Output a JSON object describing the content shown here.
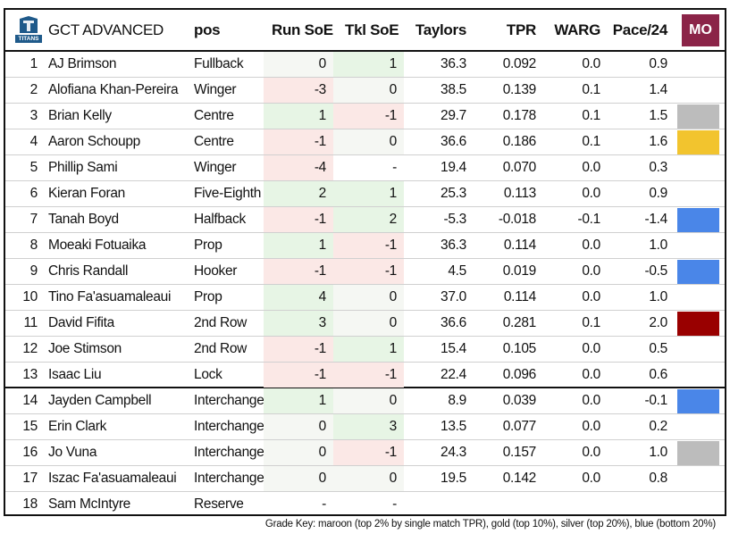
{
  "header": {
    "team": "GCT ADVANCED",
    "logo_label": "TITANS",
    "cols": {
      "pos": "pos",
      "run": "Run SoE",
      "tkl": "Tkl SoE",
      "taylors": "Taylors",
      "tpr": "TPR",
      "warg": "WARG",
      "pace": "Pace/24",
      "mo": "MO"
    }
  },
  "colors": {
    "maroon": "#8b2448",
    "gold": "#f2c42e",
    "silver": "#bcbcbc",
    "blue": "#4a86e8",
    "dark_red": "#990000",
    "positive_bg": "#e7f5e5",
    "negative_bg": "#fbe8e6"
  },
  "rows": [
    {
      "num": "1",
      "name": "AJ Brimson",
      "pos": "Fullback",
      "run": "0",
      "tkl": "1",
      "taylors": "36.3",
      "tpr": "0.092",
      "warg": "0.0",
      "pace": "0.9",
      "grade": ""
    },
    {
      "num": "2",
      "name": "Alofiana Khan-Pereira",
      "pos": "Winger",
      "run": "-3",
      "tkl": "0",
      "taylors": "38.5",
      "tpr": "0.139",
      "warg": "0.1",
      "pace": "1.4",
      "grade": ""
    },
    {
      "num": "3",
      "name": "Brian Kelly",
      "pos": "Centre",
      "run": "1",
      "tkl": "-1",
      "taylors": "29.7",
      "tpr": "0.178",
      "warg": "0.1",
      "pace": "1.5",
      "grade": "silver"
    },
    {
      "num": "4",
      "name": "Aaron Schoupp",
      "pos": "Centre",
      "run": "-1",
      "tkl": "0",
      "taylors": "36.6",
      "tpr": "0.186",
      "warg": "0.1",
      "pace": "1.6",
      "grade": "gold"
    },
    {
      "num": "5",
      "name": "Phillip Sami",
      "pos": "Winger",
      "run": "-4",
      "tkl": "-",
      "taylors": "19.4",
      "tpr": "0.070",
      "warg": "0.0",
      "pace": "0.3",
      "grade": ""
    },
    {
      "num": "6",
      "name": "Kieran Foran",
      "pos": "Five-Eighth",
      "run": "2",
      "tkl": "1",
      "taylors": "25.3",
      "tpr": "0.113",
      "warg": "0.0",
      "pace": "0.9",
      "grade": ""
    },
    {
      "num": "7",
      "name": "Tanah Boyd",
      "pos": "Halfback",
      "run": "-1",
      "tkl": "2",
      "taylors": "-5.3",
      "tpr": "-0.018",
      "warg": "-0.1",
      "pace": "-1.4",
      "grade": "blue"
    },
    {
      "num": "8",
      "name": "Moeaki Fotuaika",
      "pos": "Prop",
      "run": "1",
      "tkl": "-1",
      "taylors": "36.3",
      "tpr": "0.114",
      "warg": "0.0",
      "pace": "1.0",
      "grade": ""
    },
    {
      "num": "9",
      "name": "Chris Randall",
      "pos": "Hooker",
      "run": "-1",
      "tkl": "-1",
      "taylors": "4.5",
      "tpr": "0.019",
      "warg": "0.0",
      "pace": "-0.5",
      "grade": "blue"
    },
    {
      "num": "10",
      "name": "Tino Fa'asuamaleaui",
      "pos": "Prop",
      "run": "4",
      "tkl": "0",
      "taylors": "37.0",
      "tpr": "0.114",
      "warg": "0.0",
      "pace": "1.0",
      "grade": ""
    },
    {
      "num": "11",
      "name": "David Fifita",
      "pos": "2nd Row",
      "run": "3",
      "tkl": "0",
      "taylors": "36.6",
      "tpr": "0.281",
      "warg": "0.1",
      "pace": "2.0",
      "grade": "maroon"
    },
    {
      "num": "12",
      "name": "Joe Stimson",
      "pos": "2nd Row",
      "run": "-1",
      "tkl": "1",
      "taylors": "15.4",
      "tpr": "0.105",
      "warg": "0.0",
      "pace": "0.5",
      "grade": ""
    },
    {
      "num": "13",
      "name": "Isaac Liu",
      "pos": "Lock",
      "run": "-1",
      "tkl": "-1",
      "taylors": "22.4",
      "tpr": "0.096",
      "warg": "0.0",
      "pace": "0.6",
      "grade": ""
    },
    {
      "num": "14",
      "name": "Jayden Campbell",
      "pos": "Interchange",
      "run": "1",
      "tkl": "0",
      "taylors": "8.9",
      "tpr": "0.039",
      "warg": "0.0",
      "pace": "-0.1",
      "grade": "blue"
    },
    {
      "num": "15",
      "name": "Erin Clark",
      "pos": "Interchange",
      "run": "0",
      "tkl": "3",
      "taylors": "13.5",
      "tpr": "0.077",
      "warg": "0.0",
      "pace": "0.2",
      "grade": ""
    },
    {
      "num": "16",
      "name": "Jo Vuna",
      "pos": "Interchange",
      "run": "0",
      "tkl": "-1",
      "taylors": "24.3",
      "tpr": "0.157",
      "warg": "0.0",
      "pace": "1.0",
      "grade": "silver"
    },
    {
      "num": "17",
      "name": "Iszac Fa'asuamaleaui",
      "pos": "Interchange",
      "run": "0",
      "tkl": "0",
      "taylors": "19.5",
      "tpr": "0.142",
      "warg": "0.0",
      "pace": "0.8",
      "grade": ""
    },
    {
      "num": "18",
      "name": "Sam McIntyre",
      "pos": "Reserve",
      "run": "-",
      "tkl": "-",
      "taylors": "",
      "tpr": "",
      "warg": "",
      "pace": "",
      "grade": ""
    }
  ],
  "footer": {
    "grade_key": "Grade Key: maroon (top 2% by single match TPR), gold (top 10%), silver (top 20%), blue (bottom 20%)"
  }
}
